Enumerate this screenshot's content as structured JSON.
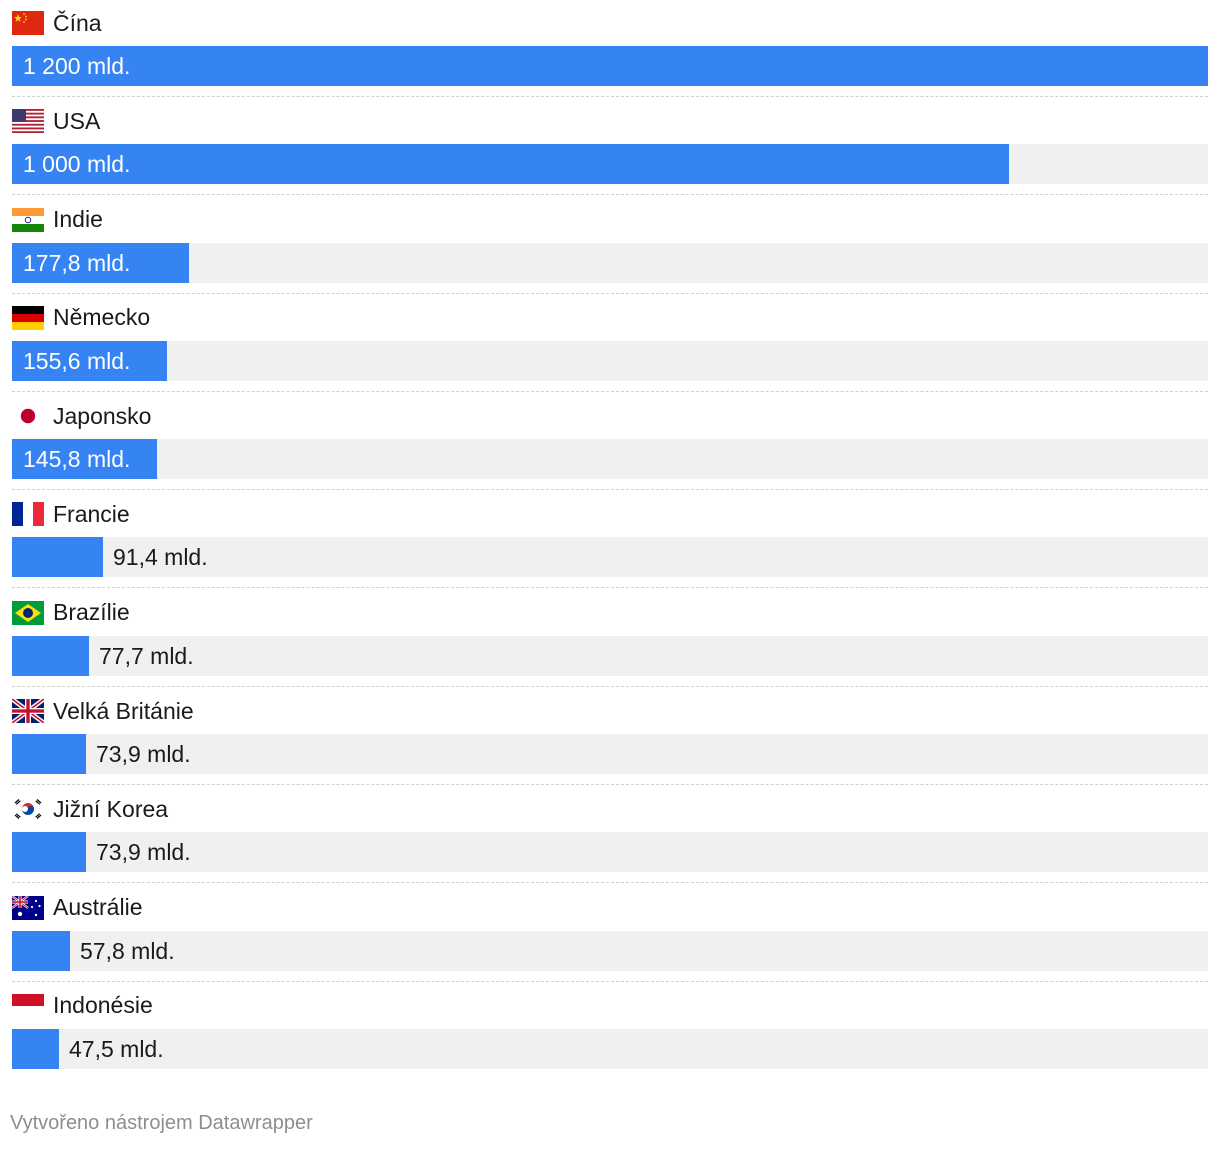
{
  "chart_data": {
    "type": "bar",
    "orientation": "horizontal",
    "xlim": [
      0,
      1200
    ],
    "categories": [
      "Čína",
      "USA",
      "Indie",
      "Německo",
      "Japonsko",
      "Francie",
      "Brazílie",
      "Velká Británie",
      "Jižní Korea",
      "Austrálie",
      "Indonésie"
    ],
    "values": [
      1200,
      1000,
      177.8,
      155.6,
      145.8,
      91.4,
      77.7,
      73.9,
      73.9,
      57.8,
      47.5
    ],
    "value_labels": [
      "1 200 mld.",
      "1 000 mld.",
      "177,8 mld.",
      "155,6 mld.",
      "145,8 mld.",
      "91,4 mld.",
      "77,7 mld.",
      "73,9 mld.",
      "73,9 mld.",
      "57,8 mld.",
      "47,5 mld."
    ],
    "flags": [
      "china-flag",
      "usa-flag",
      "india-flag",
      "germany-flag",
      "japan-flag",
      "france-flag",
      "brazil-flag",
      "uk-flag",
      "south-korea-flag",
      "australia-flag",
      "indonesia-flag"
    ],
    "bar_color": "#3683f4",
    "track_color": "#f0f0f0"
  },
  "footer": "Vytvořeno nástrojem Datawrapper"
}
